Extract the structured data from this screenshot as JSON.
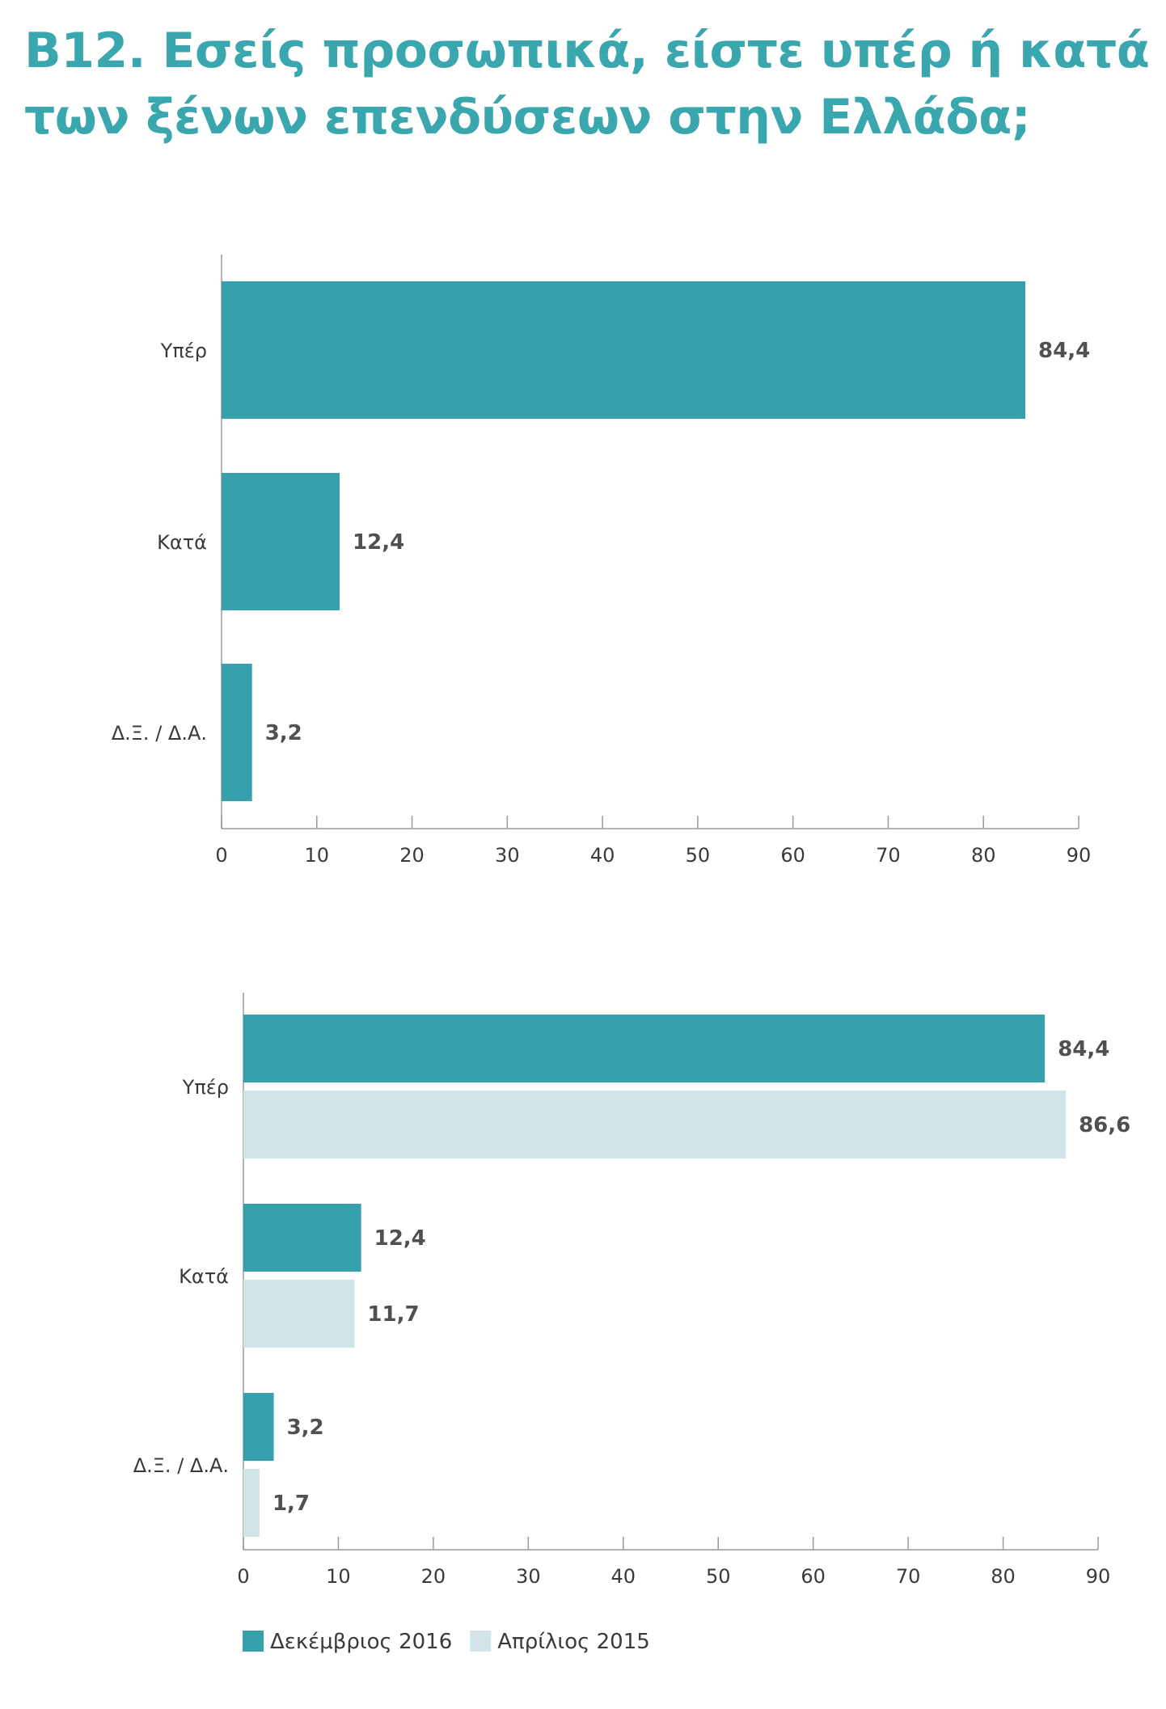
{
  "title": {
    "line1": "B12. Εσείς προσωπικά, είστε υπέρ ή κατά",
    "line2": "των ξένων επενδύσεων στην Ελλάδα;"
  },
  "colors": {
    "primary": "#36a1ad",
    "secondary": "#d2e4e7",
    "title": "#3aa6ae"
  },
  "chart_data": [
    {
      "type": "bar",
      "orientation": "horizontal",
      "categories": [
        "Υπέρ",
        "Κατά",
        "Δ.Ξ. / Δ.Α."
      ],
      "series": [
        {
          "values": [
            84.4,
            12.4,
            3.2
          ],
          "labels": [
            "84,4",
            "12,4",
            "3,2"
          ],
          "color": "#36a1ad"
        }
      ],
      "xlim": [
        0,
        90
      ],
      "xticks": [
        0,
        10,
        20,
        30,
        40,
        50,
        60,
        70,
        80,
        90
      ],
      "grid": false
    },
    {
      "type": "bar",
      "orientation": "horizontal",
      "categories": [
        "Υπέρ",
        "Κατά",
        "Δ.Ξ. / Δ.Α."
      ],
      "series": [
        {
          "name": "Δεκέμβριος 2016",
          "values": [
            84.4,
            12.4,
            3.2
          ],
          "labels": [
            "84,4",
            "12,4",
            "3,2"
          ],
          "color": "#36a1ad"
        },
        {
          "name": "Απρίλιος 2015",
          "values": [
            86.6,
            11.7,
            1.7
          ],
          "labels": [
            "86,6",
            "11,7",
            "1,7"
          ],
          "color": "#d2e4e7"
        }
      ],
      "xlim": [
        0,
        90
      ],
      "xticks": [
        0,
        10,
        20,
        30,
        40,
        50,
        60,
        70,
        80,
        90
      ],
      "grid": false,
      "legend": "bottom-left"
    }
  ]
}
